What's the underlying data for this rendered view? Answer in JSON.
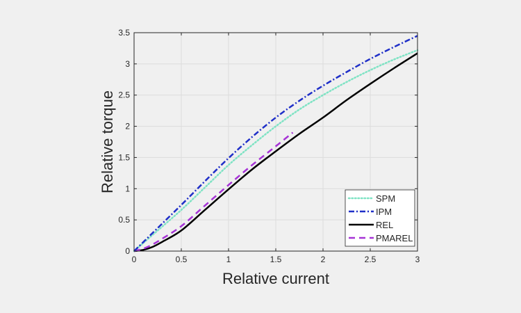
{
  "chart_data": {
    "type": "line",
    "title": "",
    "xlabel": "Relative current",
    "ylabel": "Relative torque",
    "xlim": [
      0,
      3
    ],
    "ylim": [
      0,
      3.5
    ],
    "xticks": [
      0,
      0.5,
      1,
      1.5,
      2,
      2.5,
      3
    ],
    "xtick_labels": [
      "0",
      "0.5",
      "1",
      "1.5",
      "2",
      "2.5",
      "3"
    ],
    "yticks": [
      0,
      0.5,
      1,
      1.5,
      2,
      2.5,
      3,
      3.5
    ],
    "ytick_labels": [
      "0",
      "0.5",
      "1",
      "1.5",
      "2",
      "2.5",
      "3",
      "3.5"
    ],
    "grid": true,
    "legend_position": "lower right",
    "series": [
      {
        "name": "SPM",
        "color": "#7fe3c4",
        "style": "dotted",
        "x": [
          0,
          0.25,
          0.5,
          0.75,
          1,
          1.25,
          1.5,
          1.75,
          2,
          2.25,
          2.5,
          2.75,
          3
        ],
        "y": [
          0,
          0.33,
          0.66,
          1.02,
          1.38,
          1.7,
          2.0,
          2.27,
          2.5,
          2.71,
          2.9,
          3.07,
          3.22
        ]
      },
      {
        "name": "IPM",
        "color": "#1f2fc8",
        "style": "dashdot",
        "x": [
          0,
          0.25,
          0.5,
          0.75,
          1,
          1.25,
          1.5,
          1.75,
          2,
          2.25,
          2.5,
          2.75,
          3
        ],
        "y": [
          0,
          0.37,
          0.74,
          1.12,
          1.49,
          1.83,
          2.14,
          2.41,
          2.65,
          2.87,
          3.08,
          3.27,
          3.45
        ]
      },
      {
        "name": "REL",
        "color": "#000000",
        "style": "solid",
        "x": [
          0,
          0.1,
          0.2,
          0.3,
          0.5,
          0.75,
          1,
          1.25,
          1.5,
          1.75,
          2,
          2.25,
          2.5,
          2.75,
          3
        ],
        "y": [
          0,
          0.02,
          0.07,
          0.15,
          0.33,
          0.66,
          0.99,
          1.31,
          1.6,
          1.88,
          2.14,
          2.42,
          2.68,
          2.93,
          3.17
        ]
      },
      {
        "name": "PMAREL",
        "color": "#a633d6",
        "style": "dashed",
        "x": [
          0,
          0.1,
          0.2,
          0.3,
          0.5,
          0.75,
          1,
          1.25,
          1.5,
          1.68
        ],
        "y": [
          0,
          0.04,
          0.11,
          0.2,
          0.4,
          0.73,
          1.06,
          1.38,
          1.68,
          1.9
        ]
      }
    ]
  }
}
